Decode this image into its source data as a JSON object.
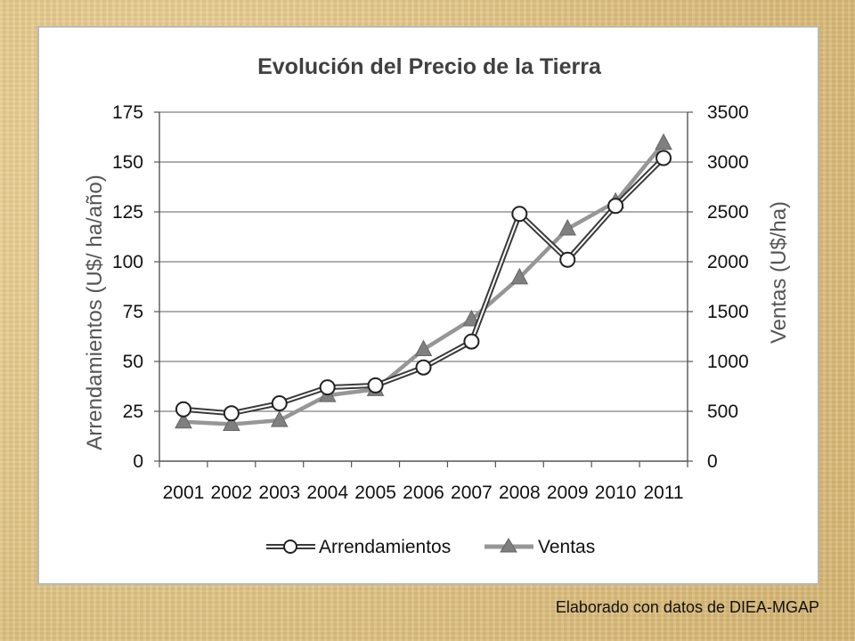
{
  "source_note": "Elaborado con datos de DIEA-MGAP",
  "chart_data": {
    "type": "line",
    "title": "Evolución del Precio de la Tierra",
    "categories": [
      "2001",
      "2002",
      "2003",
      "2004",
      "2005",
      "2006",
      "2007",
      "2008",
      "2009",
      "2010",
      "2011"
    ],
    "y_left": {
      "label": "Arrendamientos  (U$/ ha/año)",
      "range": [
        0,
        175
      ],
      "ticks": [
        0,
        25,
        50,
        75,
        100,
        125,
        150,
        175
      ]
    },
    "y_right": {
      "label": "Ventas (U$/ha)",
      "range": [
        0,
        3500
      ],
      "ticks": [
        0,
        500,
        1000,
        1500,
        2000,
        2500,
        3000,
        3500
      ]
    },
    "grid": true,
    "legend_position": "bottom",
    "series": [
      {
        "name": "Arrendamientos",
        "axis": "left",
        "marker": "circle",
        "values": [
          26,
          24,
          29,
          37,
          38,
          47,
          60,
          124,
          101,
          128,
          152
        ]
      },
      {
        "name": "Ventas",
        "axis": "right",
        "marker": "triangle",
        "values": [
          395,
          370,
          410,
          660,
          720,
          1120,
          1420,
          1840,
          2330,
          2600,
          3190
        ]
      }
    ],
    "colors": {
      "arrendamientos_line": "#3a3a3a",
      "ventas_line": "#969696",
      "ventas_marker": "#7f7f7f",
      "grid": "#7f7f7f"
    }
  }
}
